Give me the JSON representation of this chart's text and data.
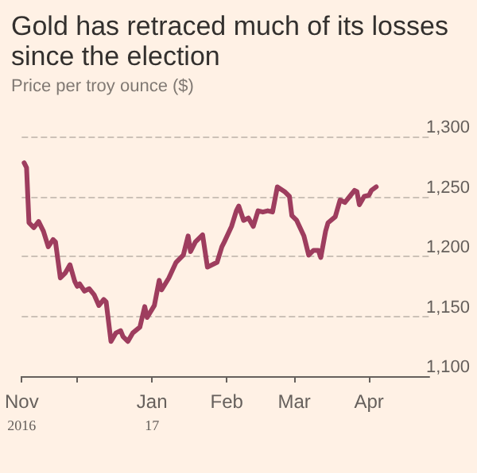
{
  "chart_data": {
    "type": "line",
    "title": "Gold has retraced much of its losses since the election",
    "subtitle": "Price per troy ounce ($)",
    "x": [
      "2016-11-09",
      "2016-11-10",
      "2016-11-11",
      "2016-11-13",
      "2016-11-15",
      "2016-11-17",
      "2016-11-19",
      "2016-11-21",
      "2016-11-22",
      "2016-11-24",
      "2016-11-26",
      "2016-11-28",
      "2016-11-30",
      "2016-12-01",
      "2016-12-02",
      "2016-12-04",
      "2016-12-06",
      "2016-12-08",
      "2016-12-10",
      "2016-12-12",
      "2016-12-13",
      "2016-12-15",
      "2016-12-17",
      "2016-12-19",
      "2016-12-20",
      "2016-12-22",
      "2016-12-24",
      "2016-12-27",
      "2016-12-29",
      "2016-12-30",
      "2017-01-02",
      "2017-01-04",
      "2017-01-05",
      "2017-01-08",
      "2017-01-11",
      "2017-01-14",
      "2017-01-16",
      "2017-01-17",
      "2017-01-19",
      "2017-01-22",
      "2017-01-24",
      "2017-01-28",
      "2017-01-30",
      "2017-01-31",
      "2017-02-03",
      "2017-02-05",
      "2017-02-06",
      "2017-02-08",
      "2017-02-10",
      "2017-02-12",
      "2017-02-14",
      "2017-02-16",
      "2017-02-18",
      "2017-02-20",
      "2017-02-22",
      "2017-02-25",
      "2017-02-27",
      "2017-02-28",
      "2017-03-02",
      "2017-03-05",
      "2017-03-07",
      "2017-03-09",
      "2017-03-11",
      "2017-03-12",
      "2017-03-14",
      "2017-03-15",
      "2017-03-18",
      "2017-03-20",
      "2017-03-22",
      "2017-03-24",
      "2017-03-26",
      "2017-03-27",
      "2017-03-28",
      "2017-03-30",
      "2017-04-01",
      "2017-04-02",
      "2017-04-04"
    ],
    "series": [
      {
        "color": "#9e3d5e",
        "values": [
          1278,
          1274,
          1228,
          1224,
          1229,
          1221,
          1208,
          1214,
          1212,
          1182,
          1186,
          1193,
          1179,
          1175,
          1177,
          1171,
          1173,
          1168,
          1159,
          1164,
          1162,
          1129,
          1136,
          1138,
          1133,
          1129,
          1136,
          1141,
          1158,
          1149,
          1159,
          1180,
          1172,
          1182,
          1195,
          1201,
          1217,
          1204,
          1212,
          1218,
          1191,
          1195,
          1208,
          1212,
          1225,
          1238,
          1242,
          1230,
          1232,
          1225,
          1238,
          1237,
          1238,
          1237,
          1258,
          1254,
          1250,
          1234,
          1230,
          1217,
          1201,
          1205,
          1205,
          1199,
          1221,
          1228,
          1233,
          1247,
          1245,
          1250,
          1255,
          1254,
          1243,
          1250,
          1251,
          1255,
          1258
        ]
      }
    ],
    "xlim": [
      "2016-11-08",
      "2017-04-26"
    ],
    "xticks": [
      {
        "value": "2016-11-08",
        "label": "Nov\n2016"
      },
      {
        "value": "2016-12-01",
        "label": null
      },
      {
        "value": "2017-01-01",
        "label": "Jan\n17"
      },
      {
        "value": "2017-02-01",
        "label": "Feb"
      },
      {
        "value": "2017-03-01",
        "label": "Mar"
      },
      {
        "value": "2017-04-01",
        "label": "Apr"
      }
    ],
    "ylim": [
      1100,
      1300
    ],
    "yticks": [
      {
        "value": 1100,
        "label": "1,100"
      },
      {
        "value": 1150,
        "label": "1,150"
      },
      {
        "value": 1200,
        "label": "1,200"
      },
      {
        "value": 1250,
        "label": "1,250"
      },
      {
        "value": 1300,
        "label": "1,300"
      }
    ],
    "grid": "y",
    "marker": "none",
    "line_style": "solid"
  }
}
